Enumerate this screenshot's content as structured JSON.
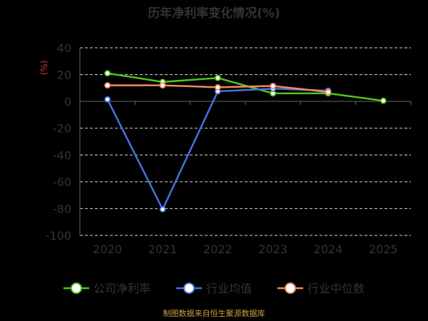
{
  "chart_data": {
    "type": "line",
    "title": "历年净利率变化情况(%)",
    "ylabel": "(%)",
    "xlabel": "",
    "categories": [
      "2020",
      "2021",
      "2022",
      "2023",
      "2024",
      "2025"
    ],
    "y_ticks": [
      "40",
      "20",
      "0",
      "-20",
      "-40",
      "-60",
      "-80",
      "-100"
    ],
    "ylim": [
      -100,
      40
    ],
    "grid": true,
    "legend_position": "bottom",
    "series": [
      {
        "name": "公司净利率",
        "color": "#52c41a",
        "values": [
          21.0,
          14.5,
          17.5,
          6.0,
          6.0,
          0.5
        ]
      },
      {
        "name": "行业均值",
        "color": "#4472e0",
        "values": [
          1.5,
          -80.5,
          7.5,
          9.5,
          8.0,
          null
        ]
      },
      {
        "name": "行业中位数",
        "color": "#f08a5d",
        "values": [
          12.0,
          12.0,
          10.5,
          11.5,
          7.0,
          null
        ]
      }
    ],
    "source": "制图数据来自恒生聚源数据库"
  }
}
